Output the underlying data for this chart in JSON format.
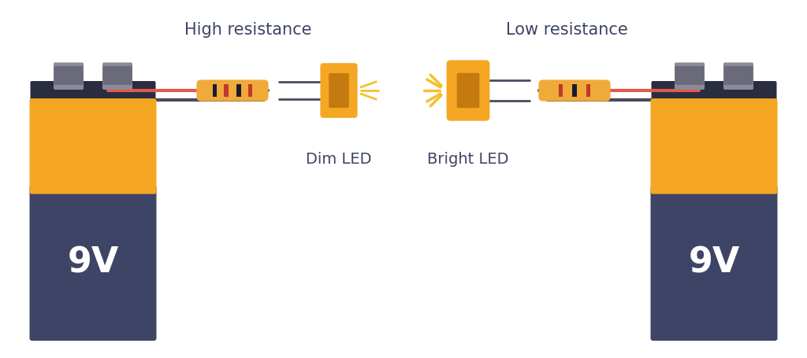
{
  "bg_color": "#ffffff",
  "battery_dark": "#3d4466",
  "battery_orange": "#f5a623",
  "battery_top": "#2a2d40",
  "terminal_gray": "#8a8a98",
  "terminal_inner": "#6a6a7a",
  "wire_dark": "#4a4a5e",
  "wire_red": "#e05a4a",
  "resistor_body": "#f0aa3a",
  "resistor_stripe1": "#c0392b",
  "resistor_stripe2": "#1a1a2e",
  "resistor_end": "#d4903a",
  "led_body": "#f5a623",
  "led_body_bright": "#f5a623",
  "led_lens": "#e8d08a",
  "led_dark": "#c47a10",
  "led_base": "#c47a10",
  "spark_color": "#f5c030",
  "text_color": "#3d4466",
  "title_left": "High resistance",
  "title_right": "Low resistance",
  "label_left": "Dim LED",
  "label_right": "Bright LED",
  "voltage": "9V"
}
